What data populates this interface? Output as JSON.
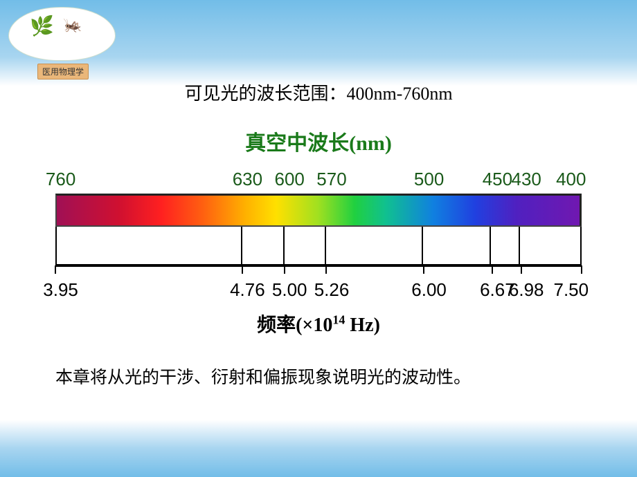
{
  "logo": {
    "text": "医用物理学",
    "flower_icon": "🌿",
    "dragonfly_icon": "🦗"
  },
  "range_text": "可见光的波长范围：400nm-760nm",
  "wavelength_title": "真空中波长(nm)",
  "frequency_title_prefix": "频率(×10",
  "frequency_title_exp": "14",
  "frequency_title_suffix": "  Hz)",
  "chapter_text": "本章将从光的干涉、衍射和偏振现象说明光的波动性。",
  "spectrum": {
    "wavelength_ticks": [
      {
        "label": "760",
        "pos_pct": 1.0
      },
      {
        "label": "630",
        "pos_pct": 36.5
      },
      {
        "label": "600",
        "pos_pct": 44.5
      },
      {
        "label": "570",
        "pos_pct": 52.5
      },
      {
        "label": "500",
        "pos_pct": 71.0
      },
      {
        "label": "450",
        "pos_pct": 84.0
      },
      {
        "label": "430",
        "pos_pct": 89.5
      },
      {
        "label": "400",
        "pos_pct": 98.0
      }
    ],
    "frequency_ticks": [
      {
        "label": "3.95",
        "pos_pct": 1.0
      },
      {
        "label": "4.76",
        "pos_pct": 36.5
      },
      {
        "label": "5.00",
        "pos_pct": 44.5
      },
      {
        "label": "5.26",
        "pos_pct": 52.5
      },
      {
        "label": "6.00",
        "pos_pct": 71.0
      },
      {
        "label": "6.67",
        "pos_pct": 84.0
      },
      {
        "label": "6.98",
        "pos_pct": 89.5
      },
      {
        "label": "7.50",
        "pos_pct": 98.0
      }
    ],
    "bands": [
      {
        "name": "red",
        "width_pct": 35.5
      },
      {
        "name": "orange",
        "width_pct": 8.0
      },
      {
        "name": "yellow",
        "width_pct": 8.0
      },
      {
        "name": "green",
        "width_pct": 18.5
      },
      {
        "name": "cyan",
        "width_pct": 13.0
      },
      {
        "name": "blue",
        "width_pct": 5.5
      },
      {
        "name": "violet",
        "width_pct": 11.5
      }
    ],
    "axis_tick_positions_pct": [
      0,
      35.5,
      43.5,
      51.5,
      70.0,
      83.0,
      88.5,
      100
    ]
  }
}
